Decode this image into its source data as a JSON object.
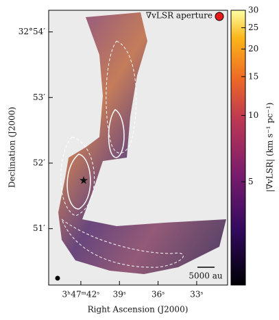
{
  "chart_data": {
    "type": "image",
    "annotation": "∇vLSR aperture",
    "scale_bar_label": "5000 au",
    "x_label": "Right Ascension (J2000)",
    "y_label": "Declination (J2000)",
    "xlim": [
      44.5,
      30.6
    ],
    "xticks": [
      {
        "value": 42,
        "label": "3ʰ47ᵐ42ˢ"
      },
      {
        "value": 39,
        "label": "39ˢ"
      },
      {
        "value": 36,
        "label": "36ˢ"
      },
      {
        "value": 33,
        "label": "33ˢ"
      }
    ],
    "ylim": [
      50.14,
      54.33
    ],
    "yticks": [
      {
        "value": 54,
        "label": "32°54′"
      },
      {
        "value": 53,
        "label": "53′"
      },
      {
        "value": 52,
        "label": "52′"
      },
      {
        "value": 51,
        "label": "51′"
      }
    ],
    "colorbar": {
      "label": "|∇vLSR| (km s⁻¹ pc⁻¹)",
      "scale": "log",
      "lim": [
        1.7,
        30
      ],
      "ticks": [
        5,
        10,
        15,
        20,
        25,
        30
      ]
    }
  }
}
